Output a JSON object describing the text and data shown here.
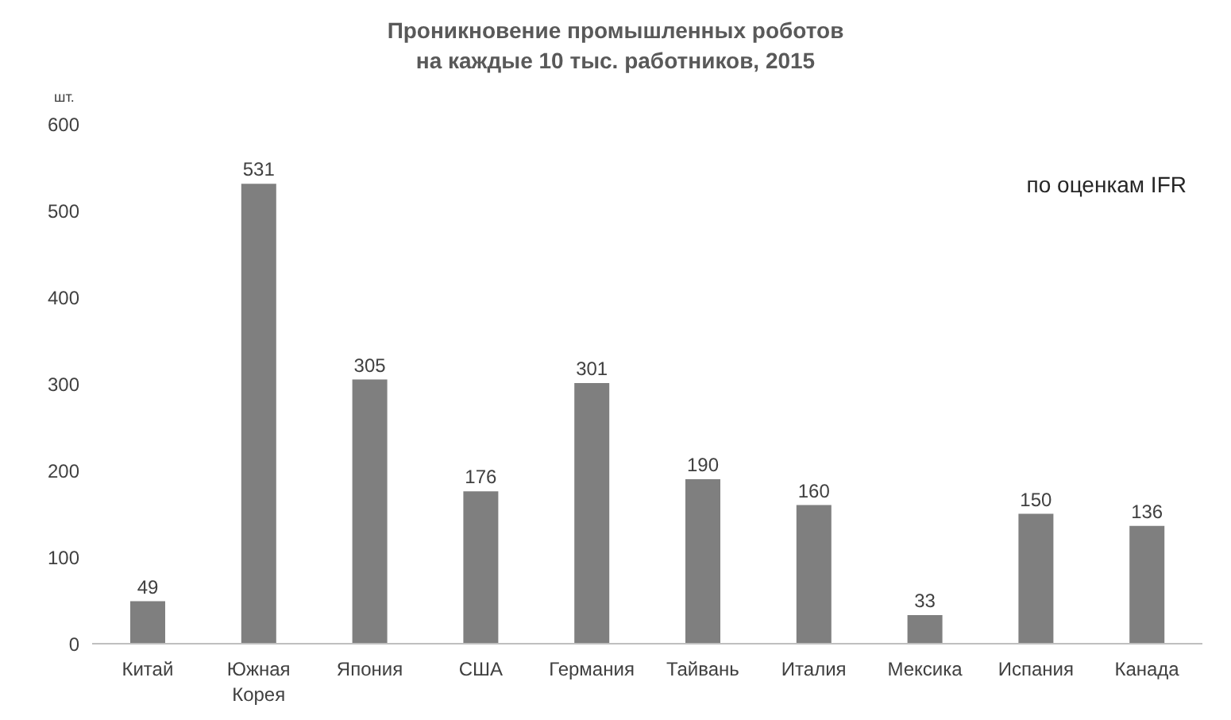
{
  "chart_data": {
    "type": "bar",
    "title": "Проникновение промышленных роботов\nна каждые 10 тыс. работников, 2015",
    "ylabel": "шт.",
    "categories": [
      "Китай",
      "Южная Корея",
      "Япония",
      "США",
      "Германия",
      "Тайвань",
      "Италия",
      "Мексика",
      "Испания",
      "Канада"
    ],
    "values": [
      49,
      531,
      305,
      176,
      301,
      190,
      160,
      33,
      150,
      136
    ],
    "color": "#7f7f7f",
    "ylim": [
      0,
      600
    ],
    "yticks": [
      0,
      100,
      200,
      300,
      400,
      500,
      600
    ],
    "grid": false,
    "data_labels": true,
    "annotations": [
      "по оценкам IFR"
    ]
  }
}
